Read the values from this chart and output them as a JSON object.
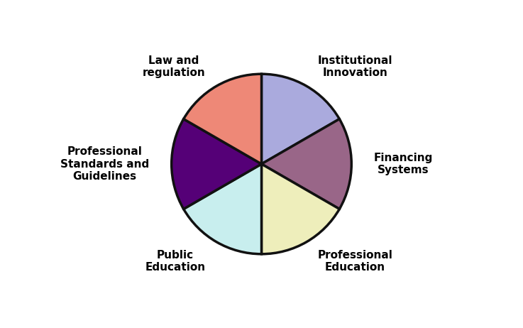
{
  "slices": [
    {
      "label": "Institutional\nInnovation",
      "value": 60,
      "color": "#aaaadd"
    },
    {
      "label": "Financing\nSystems",
      "value": 60,
      "color": "#996688"
    },
    {
      "label": "Professional\nEducation",
      "value": 60,
      "color": "#eeeebb"
    },
    {
      "label": "Public\nEducation",
      "value": 60,
      "color": "#c8eeee"
    },
    {
      "label": "Professional\nStandards and\nGuidelines",
      "value": 60,
      "color": "#550077"
    },
    {
      "label": "Law and\nregulation",
      "value": 60,
      "color": "#ee8877"
    }
  ],
  "startangle": 90,
  "figsize": [
    7.37,
    4.62
  ],
  "dpi": 100,
  "edge_color": "#111111",
  "edge_width": 2.5,
  "background_color": "#ffffff",
  "label_fontsize": 11,
  "label_fontweight": "bold",
  "pctdistance": 0.6,
  "label_distance": 1.25
}
